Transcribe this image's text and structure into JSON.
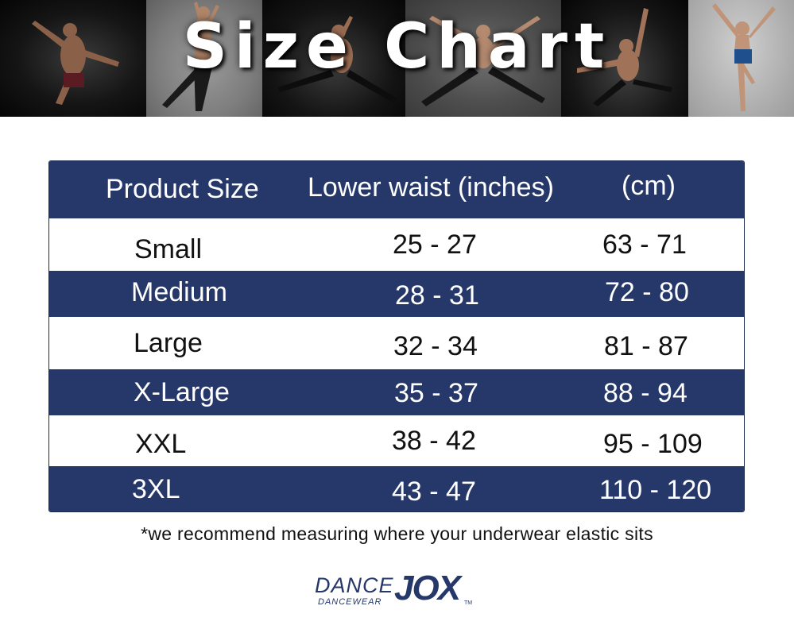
{
  "banner": {
    "title": "Size Chart"
  },
  "table": {
    "headers": [
      "Product Size",
      "Lower waist (inches)",
      "(cm)"
    ],
    "rows": [
      {
        "size": "Small",
        "inches": "25 - 27",
        "cm": "63 - 71"
      },
      {
        "size": "Medium",
        "inches": "28 - 31",
        "cm": "72 - 80"
      },
      {
        "size": "Large",
        "inches": "32 - 34",
        "cm": "81 - 87"
      },
      {
        "size": "X-Large",
        "inches": "35 - 37",
        "cm": "88 - 94"
      },
      {
        "size": "XXL",
        "inches": "38 - 42",
        "cm": "95 - 109"
      },
      {
        "size": "3XL",
        "inches": "43 - 47",
        "cm": "110 - 120"
      }
    ]
  },
  "footnote": "*we recommend measuring where your underwear elastic sits",
  "logo": {
    "dance": "DANCE",
    "jox": "JOX",
    "sub": "DANCEWEAR",
    "tm": "TM"
  },
  "colors": {
    "header_band": "#26386a",
    "text_dark": "#111111"
  }
}
